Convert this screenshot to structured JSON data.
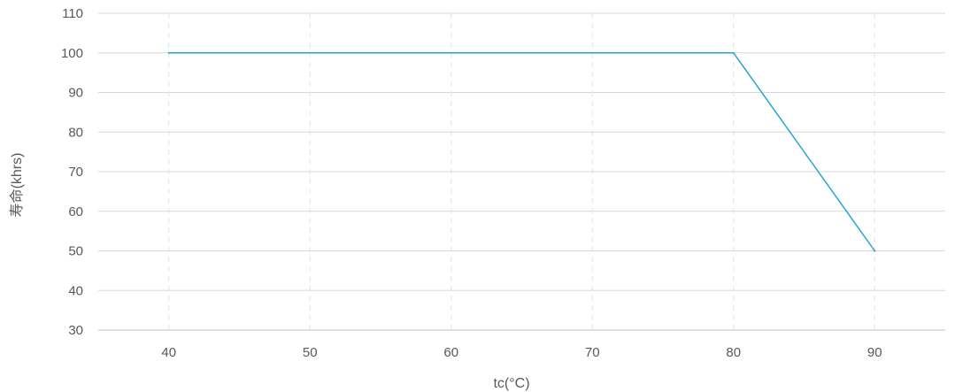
{
  "chart_data": {
    "type": "line",
    "title": "",
    "xlabel": "tc(°C)",
    "ylabel": "寿命(khrs)",
    "xlim": [
      35,
      95
    ],
    "ylim": [
      30,
      110
    ],
    "x_ticks": [
      40,
      50,
      60,
      70,
      80,
      90
    ],
    "y_ticks": [
      30,
      40,
      50,
      60,
      70,
      80,
      90,
      100,
      110
    ],
    "grid": {
      "horizontal": "solid",
      "vertical": "dashed"
    },
    "legend": "none",
    "series": [
      {
        "color": "#29a3d6",
        "points": [
          {
            "x": 40,
            "y": 100
          },
          {
            "x": 80,
            "y": 100
          },
          {
            "x": 90,
            "y": 50
          }
        ]
      }
    ]
  }
}
